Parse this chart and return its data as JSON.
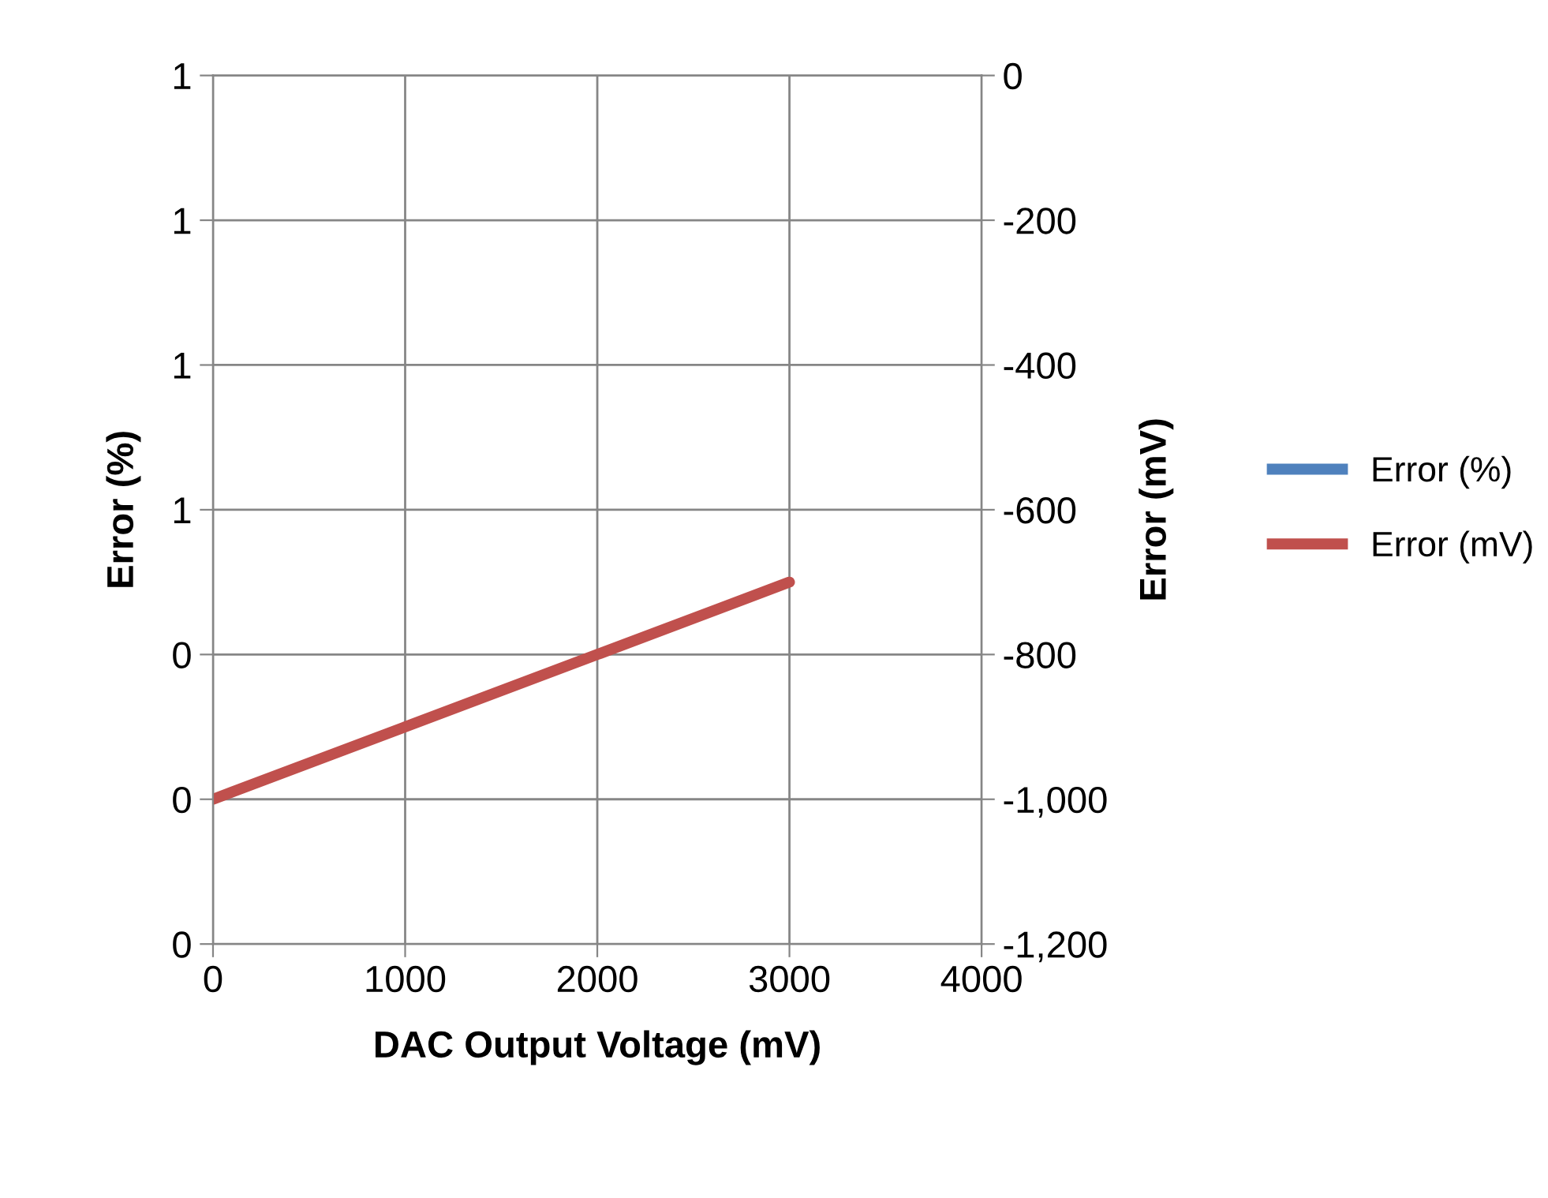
{
  "chart_data": {
    "type": "line",
    "xlabel": "DAC Output Voltage (mV)",
    "ylabel": "Error (%)",
    "y2label": "Error (mV)",
    "xlim": [
      0,
      4000
    ],
    "xticks": [
      0,
      1000,
      2000,
      3000,
      4000
    ],
    "ylim": [
      0,
      1.2
    ],
    "yticks": [
      {
        "value": 0,
        "label": "0"
      },
      {
        "value": 0.2,
        "label": "0"
      },
      {
        "value": 0.4,
        "label": "0"
      },
      {
        "value": 0.6,
        "label": "1"
      },
      {
        "value": 0.8,
        "label": "1"
      },
      {
        "value": 1.0,
        "label": "1"
      },
      {
        "value": 1.2,
        "label": "1"
      }
    ],
    "y2lim": [
      -1200,
      0
    ],
    "y2ticks": [
      {
        "value": -1200,
        "label": "-1,200"
      },
      {
        "value": -1000,
        "label": "-1,000"
      },
      {
        "value": -800,
        "label": "-800"
      },
      {
        "value": -600,
        "label": "-600"
      },
      {
        "value": -400,
        "label": "-400"
      },
      {
        "value": -200,
        "label": "-200"
      },
      {
        "value": 0,
        "label": "0"
      }
    ],
    "x": [
      0,
      100,
      1000,
      2000,
      3000
    ],
    "series": [
      {
        "name": "Error (%)",
        "color": "#4f81bd",
        "values": [
          null,
          null,
          null,
          null,
          null
        ]
      },
      {
        "name": "Error (mV)",
        "color": "#c0504d",
        "axis": "y2",
        "values": [
          -1000,
          -990,
          -900,
          -800,
          -700
        ]
      }
    ],
    "grid": true,
    "legend": "right",
    "marker": "none",
    "line_style": "solid"
  }
}
